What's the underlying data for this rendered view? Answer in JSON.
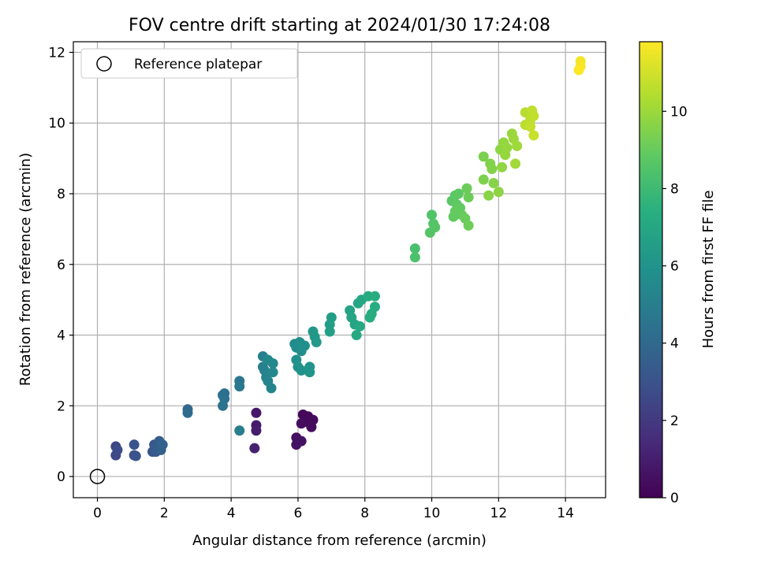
{
  "chart_data": {
    "type": "scatter",
    "title": "FOV centre drift starting at 2024/01/30 17:24:08",
    "xlabel": "Angular distance from reference (arcmin)",
    "ylabel": "Rotation from reference (arcmin)",
    "xlim": [
      -0.72,
      15.2
    ],
    "ylim": [
      -0.6,
      12.3
    ],
    "xticks": [
      0,
      2,
      4,
      6,
      8,
      10,
      12,
      14
    ],
    "yticks": [
      0,
      2,
      4,
      6,
      8,
      10,
      12
    ],
    "grid": true,
    "legend": {
      "position": "top-left",
      "entries": [
        "Reference platepar"
      ]
    },
    "reference_point": {
      "x": 0,
      "y": 0
    },
    "colorbar": {
      "label": "Hours from first FF file",
      "colormap": "viridis",
      "range": [
        0,
        11.8
      ],
      "ticks": [
        0,
        2,
        4,
        6,
        8,
        10
      ]
    },
    "points": [
      {
        "x": 6.15,
        "y": 1.75,
        "c": 0.2
      },
      {
        "x": 6.3,
        "y": 1.7,
        "c": 0.25
      },
      {
        "x": 6.2,
        "y": 1.55,
        "c": 0.3
      },
      {
        "x": 6.35,
        "y": 1.5,
        "c": 0.3
      },
      {
        "x": 6.45,
        "y": 1.6,
        "c": 0.35
      },
      {
        "x": 6.1,
        "y": 1.5,
        "c": 0.4
      },
      {
        "x": 6.4,
        "y": 1.4,
        "c": 0.4
      },
      {
        "x": 5.95,
        "y": 1.1,
        "c": 0.5
      },
      {
        "x": 6.1,
        "y": 1.0,
        "c": 0.55
      },
      {
        "x": 5.95,
        "y": 0.9,
        "c": 0.6
      },
      {
        "x": 4.75,
        "y": 1.8,
        "c": 0.8
      },
      {
        "x": 4.75,
        "y": 1.45,
        "c": 0.9
      },
      {
        "x": 4.75,
        "y": 1.3,
        "c": 1.0
      },
      {
        "x": 4.7,
        "y": 0.8,
        "c": 1.1
      },
      {
        "x": 0.55,
        "y": 0.85,
        "c": 2.5
      },
      {
        "x": 0.55,
        "y": 0.6,
        "c": 2.6
      },
      {
        "x": 0.6,
        "y": 0.75,
        "c": 2.7
      },
      {
        "x": 1.1,
        "y": 0.6,
        "c": 2.9
      },
      {
        "x": 1.1,
        "y": 0.9,
        "c": 3.0
      },
      {
        "x": 1.15,
        "y": 0.58,
        "c": 3.0
      },
      {
        "x": 1.65,
        "y": 0.7,
        "c": 3.1
      },
      {
        "x": 1.7,
        "y": 0.9,
        "c": 3.2
      },
      {
        "x": 1.75,
        "y": 0.7,
        "c": 3.3
      },
      {
        "x": 1.8,
        "y": 0.85,
        "c": 3.4
      },
      {
        "x": 1.85,
        "y": 1.0,
        "c": 3.5
      },
      {
        "x": 1.9,
        "y": 0.75,
        "c": 3.6
      },
      {
        "x": 1.95,
        "y": 0.9,
        "c": 3.7
      },
      {
        "x": 2.7,
        "y": 1.9,
        "c": 4.0
      },
      {
        "x": 2.7,
        "y": 1.8,
        "c": 4.1
      },
      {
        "x": 3.75,
        "y": 2.3,
        "c": 4.3
      },
      {
        "x": 3.8,
        "y": 2.35,
        "c": 4.35
      },
      {
        "x": 3.8,
        "y": 2.2,
        "c": 4.4
      },
      {
        "x": 3.75,
        "y": 2.0,
        "c": 4.45
      },
      {
        "x": 4.25,
        "y": 2.7,
        "c": 4.6
      },
      {
        "x": 4.25,
        "y": 2.55,
        "c": 4.65
      },
      {
        "x": 4.25,
        "y": 1.3,
        "c": 5.0
      },
      {
        "x": 4.95,
        "y": 3.4,
        "c": 5.1
      },
      {
        "x": 4.95,
        "y": 3.1,
        "c": 5.15
      },
      {
        "x": 5.0,
        "y": 3.0,
        "c": 5.2
      },
      {
        "x": 5.05,
        "y": 2.8,
        "c": 5.25
      },
      {
        "x": 5.1,
        "y": 2.7,
        "c": 5.3
      },
      {
        "x": 5.2,
        "y": 2.5,
        "c": 5.35
      },
      {
        "x": 5.25,
        "y": 3.2,
        "c": 5.4
      },
      {
        "x": 5.25,
        "y": 2.95,
        "c": 5.45
      },
      {
        "x": 5.1,
        "y": 3.3,
        "c": 5.5
      },
      {
        "x": 5.9,
        "y": 3.75,
        "c": 5.6
      },
      {
        "x": 5.95,
        "y": 3.65,
        "c": 5.7
      },
      {
        "x": 6.05,
        "y": 3.8,
        "c": 5.75
      },
      {
        "x": 6.1,
        "y": 3.55,
        "c": 5.8
      },
      {
        "x": 6.2,
        "y": 3.7,
        "c": 5.85
      },
      {
        "x": 5.95,
        "y": 3.3,
        "c": 5.9
      },
      {
        "x": 6.0,
        "y": 3.1,
        "c": 5.95
      },
      {
        "x": 6.1,
        "y": 3.0,
        "c": 6.0
      },
      {
        "x": 6.35,
        "y": 3.1,
        "c": 6.05
      },
      {
        "x": 6.35,
        "y": 2.95,
        "c": 6.1
      },
      {
        "x": 6.45,
        "y": 4.1,
        "c": 6.2
      },
      {
        "x": 6.5,
        "y": 3.95,
        "c": 6.25
      },
      {
        "x": 6.55,
        "y": 3.8,
        "c": 6.3
      },
      {
        "x": 7.0,
        "y": 4.5,
        "c": 6.5
      },
      {
        "x": 6.95,
        "y": 4.3,
        "c": 6.55
      },
      {
        "x": 6.95,
        "y": 4.1,
        "c": 6.6
      },
      {
        "x": 7.55,
        "y": 4.7,
        "c": 6.8
      },
      {
        "x": 7.6,
        "y": 4.5,
        "c": 6.85
      },
      {
        "x": 7.7,
        "y": 4.3,
        "c": 6.9
      },
      {
        "x": 7.8,
        "y": 4.9,
        "c": 6.95
      },
      {
        "x": 7.9,
        "y": 5.0,
        "c": 7.0
      },
      {
        "x": 7.85,
        "y": 4.25,
        "c": 7.05
      },
      {
        "x": 7.75,
        "y": 4.0,
        "c": 7.1
      },
      {
        "x": 8.1,
        "y": 5.1,
        "c": 7.15
      },
      {
        "x": 8.2,
        "y": 4.6,
        "c": 7.2
      },
      {
        "x": 8.3,
        "y": 4.8,
        "c": 7.25
      },
      {
        "x": 8.3,
        "y": 5.1,
        "c": 7.3
      },
      {
        "x": 8.15,
        "y": 4.5,
        "c": 7.3
      },
      {
        "x": 9.5,
        "y": 6.45,
        "c": 8.3
      },
      {
        "x": 9.5,
        "y": 6.2,
        "c": 8.35
      },
      {
        "x": 10.0,
        "y": 7.4,
        "c": 8.5
      },
      {
        "x": 10.05,
        "y": 7.15,
        "c": 8.55
      },
      {
        "x": 10.1,
        "y": 7.05,
        "c": 8.6
      },
      {
        "x": 9.95,
        "y": 6.9,
        "c": 8.6
      },
      {
        "x": 10.6,
        "y": 7.8,
        "c": 8.7
      },
      {
        "x": 10.7,
        "y": 7.95,
        "c": 8.75
      },
      {
        "x": 10.8,
        "y": 8.0,
        "c": 8.8
      },
      {
        "x": 10.75,
        "y": 7.7,
        "c": 8.85
      },
      {
        "x": 10.85,
        "y": 7.6,
        "c": 8.9
      },
      {
        "x": 10.7,
        "y": 7.5,
        "c": 8.95
      },
      {
        "x": 10.9,
        "y": 7.4,
        "c": 9.0
      },
      {
        "x": 11.0,
        "y": 7.3,
        "c": 9.05
      },
      {
        "x": 11.05,
        "y": 8.15,
        "c": 9.1
      },
      {
        "x": 11.1,
        "y": 7.9,
        "c": 9.1
      },
      {
        "x": 11.1,
        "y": 7.1,
        "c": 9.15
      },
      {
        "x": 10.65,
        "y": 7.35,
        "c": 8.9
      },
      {
        "x": 11.55,
        "y": 9.05,
        "c": 9.4
      },
      {
        "x": 11.55,
        "y": 8.4,
        "c": 9.45
      },
      {
        "x": 11.75,
        "y": 8.85,
        "c": 9.5
      },
      {
        "x": 11.8,
        "y": 8.7,
        "c": 9.55
      },
      {
        "x": 11.85,
        "y": 8.3,
        "c": 9.6
      },
      {
        "x": 11.7,
        "y": 7.95,
        "c": 9.65
      },
      {
        "x": 12.0,
        "y": 8.05,
        "c": 9.7
      },
      {
        "x": 12.05,
        "y": 9.25,
        "c": 9.75
      },
      {
        "x": 12.1,
        "y": 8.75,
        "c": 9.8
      },
      {
        "x": 12.15,
        "y": 9.45,
        "c": 9.85
      },
      {
        "x": 12.25,
        "y": 9.3,
        "c": 9.9
      },
      {
        "x": 12.4,
        "y": 9.7,
        "c": 9.95
      },
      {
        "x": 12.45,
        "y": 9.55,
        "c": 10.0
      },
      {
        "x": 12.55,
        "y": 9.35,
        "c": 10.05
      },
      {
        "x": 12.5,
        "y": 8.85,
        "c": 10.1
      },
      {
        "x": 12.2,
        "y": 9.1,
        "c": 9.9
      },
      {
        "x": 12.8,
        "y": 10.3,
        "c": 10.5
      },
      {
        "x": 12.8,
        "y": 9.95,
        "c": 10.55
      },
      {
        "x": 12.95,
        "y": 10.1,
        "c": 10.6
      },
      {
        "x": 13.0,
        "y": 10.35,
        "c": 10.65
      },
      {
        "x": 13.05,
        "y": 10.2,
        "c": 10.7
      },
      {
        "x": 12.95,
        "y": 9.9,
        "c": 10.75
      },
      {
        "x": 13.05,
        "y": 9.65,
        "c": 10.8
      },
      {
        "x": 14.45,
        "y": 11.75,
        "c": 11.6
      },
      {
        "x": 14.45,
        "y": 11.6,
        "c": 11.7
      },
      {
        "x": 14.4,
        "y": 11.5,
        "c": 11.8
      }
    ]
  }
}
